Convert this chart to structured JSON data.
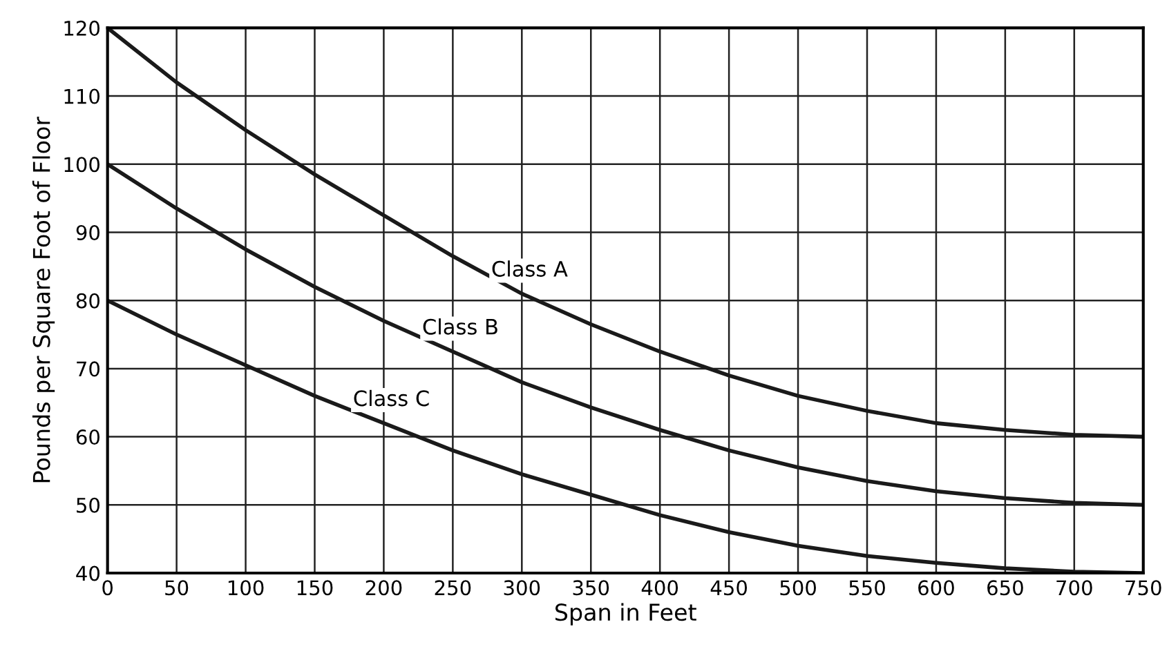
{
  "chart_data": {
    "type": "line",
    "xlabel": "Span in Feet",
    "ylabel": "Pounds per Square Foot of Floor",
    "x": [
      0,
      50,
      100,
      150,
      200,
      250,
      300,
      350,
      400,
      450,
      500,
      550,
      600,
      650,
      700,
      750
    ],
    "series": [
      {
        "name": "Class A",
        "color": "#1a1a1a",
        "values": [
          120,
          112,
          105,
          98.5,
          92.5,
          86.5,
          81,
          76.5,
          72.5,
          69,
          66,
          63.8,
          62,
          61,
          60.3,
          60
        ]
      },
      {
        "name": "Class B",
        "color": "#1a1a1a",
        "values": [
          100,
          93.5,
          87.5,
          82,
          77,
          72.5,
          68,
          64.3,
          61,
          58,
          55.5,
          53.5,
          52,
          51,
          50.3,
          50
        ]
      },
      {
        "name": "Class C",
        "color": "#1a1a1a",
        "values": [
          80,
          75,
          70.5,
          66,
          62,
          58,
          54.5,
          51.5,
          48.5,
          46,
          44,
          42.5,
          41.5,
          40.7,
          40.2,
          40
        ]
      }
    ],
    "xlim": [
      0,
      750
    ],
    "ylim": [
      40,
      120
    ],
    "xticks": [
      0,
      50,
      100,
      150,
      200,
      250,
      300,
      350,
      400,
      450,
      500,
      550,
      600,
      650,
      700,
      750
    ],
    "yticks": [
      40,
      50,
      60,
      70,
      80,
      90,
      100,
      110,
      120
    ],
    "grid": true,
    "marker": "none",
    "line_style": "solid"
  }
}
